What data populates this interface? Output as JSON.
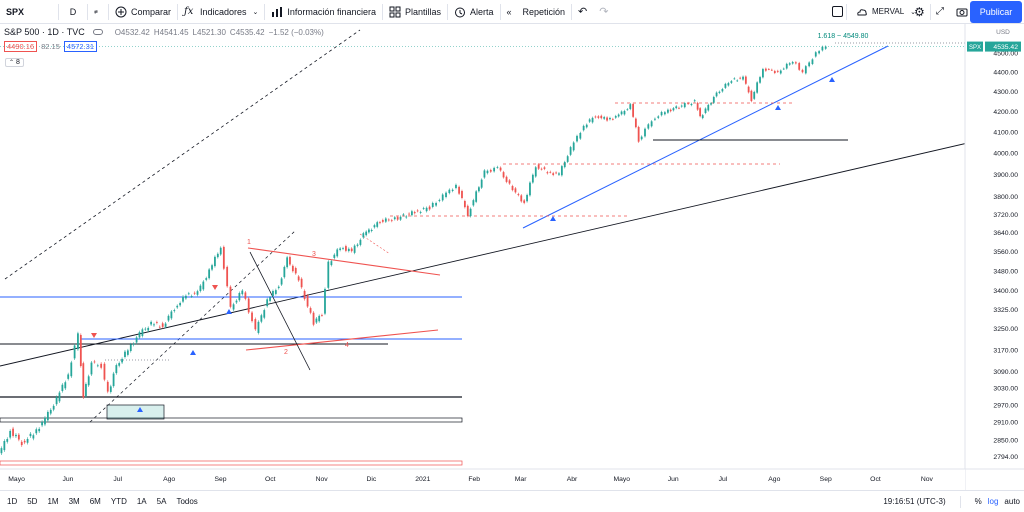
{
  "toolbar": {
    "symbol": "SPX",
    "interval": "D",
    "compare": "Comparar",
    "indicators": "Indicadores",
    "financials": "Información financiera",
    "templates": "Plantillas",
    "alert": "Alerta",
    "replay": "Repetición",
    "layout": "MERVAL",
    "publish": "Publicar"
  },
  "legend": {
    "title": "S&P 500 · 1D · TVC",
    "open": "O4532.42",
    "high": "H4541.45",
    "low": "L4521.30",
    "close": "C4535.42",
    "change": "−1.52 (−0.03%)",
    "bid": "4490.16",
    "spread": "82.15",
    "ask": "4572.31",
    "indicator_count": "8"
  },
  "colors": {
    "up": "#26a69a",
    "down": "#ef5350",
    "blue_line": "#2962ff",
    "accent": "#2962ff"
  },
  "chart_data": {
    "type": "line",
    "symbol": "SPX",
    "title": "S&P 500 · 1D · TVC",
    "y_axis": {
      "unit_label": "USD",
      "ticks": [
        2794.0,
        2850.0,
        2910.0,
        2970.0,
        3030.0,
        3090.0,
        3170.0,
        3250.0,
        3325.0,
        3400.0,
        3480.0,
        3560.0,
        3640.0,
        3720.0,
        3800.0,
        3900.0,
        4000.0,
        4100.0,
        4200.0,
        4300.0,
        4400.0,
        4500.0
      ],
      "range": [
        2760,
        4560
      ],
      "scale": "log"
    },
    "x_axis": {
      "ticks": [
        "Mayo",
        "Jun",
        "Jul",
        "Ago",
        "Sep",
        "Oct",
        "Nov",
        "Dic",
        "2021",
        "Feb",
        "Mar",
        "Abr",
        "Mayo",
        "Jun",
        "Jul",
        "Ago",
        "Sep",
        "Oct",
        "Nov"
      ],
      "range": [
        "2020-04-21",
        "2021-11-24"
      ]
    },
    "series": [
      {
        "values": [
          [
            "2020-04-21",
            2800
          ],
          [
            "2020-04-28",
            2880
          ],
          [
            "2020-05-05",
            2840
          ],
          [
            "2020-05-12",
            2870
          ],
          [
            "2020-05-19",
            2920
          ],
          [
            "2020-05-26",
            2990
          ],
          [
            "2020-06-02",
            3080
          ],
          [
            "2020-06-08",
            3230
          ],
          [
            "2020-06-11",
            3000
          ],
          [
            "2020-06-16",
            3120
          ],
          [
            "2020-06-22",
            3110
          ],
          [
            "2020-06-26",
            3010
          ],
          [
            "2020-07-01",
            3110
          ],
          [
            "2020-07-08",
            3170
          ],
          [
            "2020-07-15",
            3230
          ],
          [
            "2020-07-22",
            3270
          ],
          [
            "2020-07-29",
            3260
          ],
          [
            "2020-08-05",
            3330
          ],
          [
            "2020-08-12",
            3380
          ],
          [
            "2020-08-19",
            3390
          ],
          [
            "2020-08-26",
            3480
          ],
          [
            "2020-09-02",
            3580
          ],
          [
            "2020-09-08",
            3330
          ],
          [
            "2020-09-15",
            3400
          ],
          [
            "2020-09-23",
            3240
          ],
          [
            "2020-09-30",
            3360
          ],
          [
            "2020-10-07",
            3420
          ],
          [
            "2020-10-12",
            3530
          ],
          [
            "2020-10-19",
            3440
          ],
          [
            "2020-10-28",
            3270
          ],
          [
            "2020-11-02",
            3310
          ],
          [
            "2020-11-06",
            3510
          ],
          [
            "2020-11-13",
            3580
          ],
          [
            "2020-11-20",
            3560
          ],
          [
            "2020-11-27",
            3630
          ],
          [
            "2020-12-07",
            3690
          ],
          [
            "2020-12-16",
            3700
          ],
          [
            "2020-12-28",
            3730
          ],
          [
            "2021-01-06",
            3750
          ],
          [
            "2021-01-14",
            3800
          ],
          [
            "2021-01-22",
            3850
          ],
          [
            "2021-01-29",
            3720
          ],
          [
            "2021-02-08",
            3910
          ],
          [
            "2021-02-16",
            3930
          ],
          [
            "2021-02-25",
            3830
          ],
          [
            "2021-03-04",
            3770
          ],
          [
            "2021-03-11",
            3940
          ],
          [
            "2021-03-18",
            3910
          ],
          [
            "2021-03-25",
            3900
          ],
          [
            "2021-04-01",
            4020
          ],
          [
            "2021-04-09",
            4130
          ],
          [
            "2021-04-16",
            4180
          ],
          [
            "2021-04-23",
            4160
          ],
          [
            "2021-04-30",
            4180
          ],
          [
            "2021-05-07",
            4230
          ],
          [
            "2021-05-12",
            4060
          ],
          [
            "2021-05-20",
            4160
          ],
          [
            "2021-05-28",
            4200
          ],
          [
            "2021-06-07",
            4230
          ],
          [
            "2021-06-15",
            4250
          ],
          [
            "2021-06-18",
            4170
          ],
          [
            "2021-06-28",
            4290
          ],
          [
            "2021-07-07",
            4360
          ],
          [
            "2021-07-14",
            4370
          ],
          [
            "2021-07-19",
            4260
          ],
          [
            "2021-07-26",
            4420
          ],
          [
            "2021-08-04",
            4400
          ],
          [
            "2021-08-13",
            4460
          ],
          [
            "2021-08-19",
            4400
          ],
          [
            "2021-08-27",
            4500
          ],
          [
            "2021-09-02",
            4540
          ]
        ]
      }
    ],
    "annotations": {
      "fib_label": "1.618 ~ 4549.80",
      "last_price": "4535.42",
      "last_symbol": "SPX",
      "wave_labels": [
        "1",
        "2",
        "3",
        "4"
      ]
    },
    "grid": false
  },
  "bottom": {
    "ranges": [
      "1D",
      "5D",
      "1M",
      "3M",
      "6M",
      "YTD",
      "1A",
      "5A",
      "Todos"
    ],
    "clock": "19:16:51 (UTC-3)",
    "pct": "%",
    "log": "log",
    "auto": "auto"
  }
}
